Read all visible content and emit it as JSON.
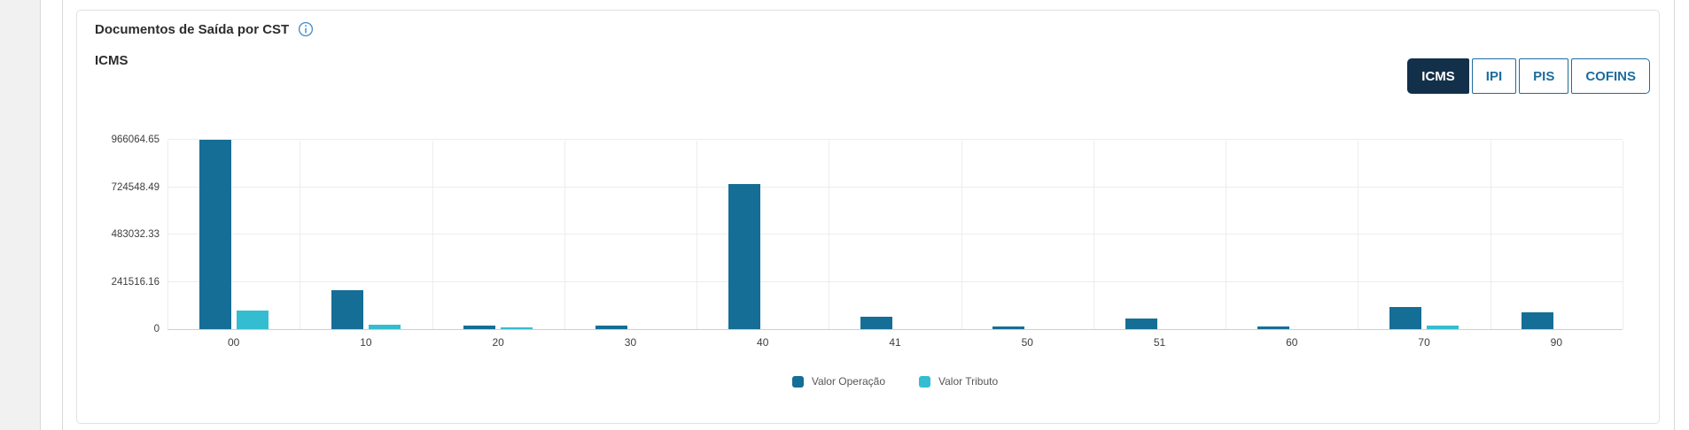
{
  "card": {
    "title": "Documentos de Saída por CST",
    "subtitle": "ICMS",
    "info_icon": "info-icon"
  },
  "tabs": [
    {
      "label": "ICMS",
      "selected": true
    },
    {
      "label": "IPI",
      "selected": false
    },
    {
      "label": "PIS",
      "selected": false
    },
    {
      "label": "COFINS",
      "selected": false
    }
  ],
  "colors": {
    "series_operacao": "#156e96",
    "series_tributo": "#34bdd0",
    "tab_selected_bg": "#12304a",
    "tab_border": "#1d6c9f",
    "info_icon": "#4a90cd",
    "gridline": "#ededed",
    "axis_line": "#cfcfcf",
    "card_border": "#e1e1e1"
  },
  "chart_data": {
    "type": "bar",
    "title": "Documentos de Saída por CST — ICMS",
    "xlabel": "",
    "ylabel": "",
    "grid": true,
    "legend_position": "bottom",
    "ylim": [
      0,
      966064.65
    ],
    "y_ticks": [
      0,
      241516.16,
      483032.33,
      724548.49,
      966064.65
    ],
    "y_tick_labels": [
      "0",
      "241516.16",
      "483032.33",
      "724548.49",
      "966064.65"
    ],
    "categories": [
      "00",
      "10",
      "20",
      "30",
      "40",
      "41",
      "50",
      "51",
      "60",
      "70",
      "90"
    ],
    "series": [
      {
        "name": "Valor Operação",
        "color": "#156e96",
        "values": [
          966064.65,
          200000,
          19000,
          19000,
          742000,
          64000,
          13000,
          56000,
          13000,
          114000,
          87000
        ]
      },
      {
        "name": "Valor Tributo",
        "color": "#34bdd0",
        "values": [
          97000,
          22000,
          10000,
          0,
          0,
          0,
          0,
          0,
          0,
          20000,
          0
        ]
      }
    ]
  }
}
